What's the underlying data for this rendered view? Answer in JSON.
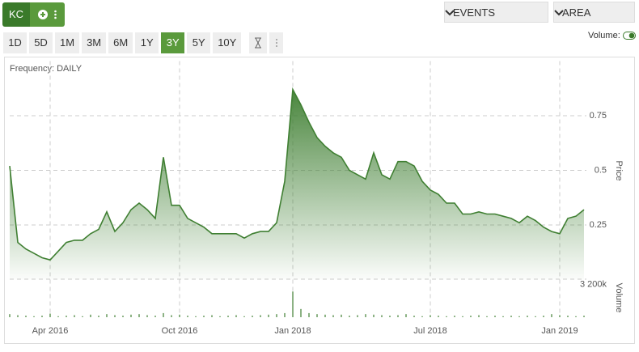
{
  "toolbar": {
    "symbol": "KC",
    "ranges": [
      "1D",
      "5D",
      "1M",
      "3M",
      "6M",
      "1Y",
      "3Y",
      "5Y",
      "10Y"
    ],
    "active_range_index": 6,
    "events": "EVENTS",
    "chart_type": "AREA",
    "volume_toggle": "Volume:"
  },
  "chart_data": {
    "type": "area",
    "subtitle": "Frequency: DAILY",
    "categories": [
      null,
      null,
      null,
      null,
      null,
      "Apr 2016",
      null,
      null,
      null,
      null,
      null,
      null,
      null,
      null,
      null,
      null,
      null,
      null,
      null,
      null,
      null,
      "Oct 2016",
      null,
      null,
      null,
      null,
      null,
      null,
      null,
      null,
      null,
      null,
      null,
      null,
      null,
      "Jan 2018",
      null,
      null,
      null,
      null,
      null,
      null,
      null,
      null,
      null,
      null,
      null,
      null,
      null,
      null,
      null,
      null,
      "Jul 2018",
      null,
      null,
      null,
      null,
      null,
      null,
      null,
      null,
      null,
      null,
      null,
      null,
      null,
      null,
      null,
      "Jan 2019",
      null,
      null,
      null
    ],
    "series": [
      {
        "name": "Price",
        "color": "#3f7f32",
        "values": [
          0.52,
          0.17,
          0.14,
          0.12,
          0.1,
          0.09,
          0.13,
          0.17,
          0.18,
          0.18,
          0.21,
          0.23,
          0.31,
          0.22,
          0.26,
          0.32,
          0.35,
          0.32,
          0.28,
          0.56,
          0.34,
          0.34,
          0.28,
          0.26,
          0.24,
          0.21,
          0.21,
          0.21,
          0.21,
          0.19,
          0.21,
          0.22,
          0.22,
          0.26,
          0.45,
          0.87,
          0.8,
          0.72,
          0.65,
          0.61,
          0.58,
          0.56,
          0.5,
          0.48,
          0.46,
          0.58,
          0.48,
          0.46,
          0.54,
          0.54,
          0.52,
          0.45,
          0.41,
          0.39,
          0.35,
          0.35,
          0.3,
          0.3,
          0.31,
          0.3,
          0.3,
          0.29,
          0.28,
          0.26,
          0.29,
          0.27,
          0.24,
          0.22,
          0.21,
          0.28,
          0.29,
          0.32
        ]
      },
      {
        "name": "Volume",
        "color": "#3f7f32",
        "axis": "y2",
        "values": [
          300000,
          200000,
          150000,
          100000,
          150000,
          350000,
          100000,
          150000,
          200000,
          100000,
          250000,
          150000,
          300000,
          200000,
          150000,
          250000,
          300000,
          200000,
          150000,
          400000,
          200000,
          250000,
          150000,
          100000,
          150000,
          200000,
          100000,
          150000,
          200000,
          100000,
          150000,
          200000,
          250000,
          300000,
          400000,
          2500000,
          800000,
          400000,
          300000,
          250000,
          200000,
          250000,
          150000,
          200000,
          300000,
          250000,
          200000,
          150000,
          200000,
          300000,
          150000,
          100000,
          200000,
          150000,
          100000,
          150000,
          100000,
          150000,
          200000,
          100000,
          150000,
          100000,
          150000,
          100000,
          150000,
          100000,
          150000,
          300000,
          200000,
          150000,
          100000,
          150000
        ]
      }
    ],
    "ylim": [
      0,
      1
    ],
    "yticks": [
      0.25,
      0.5,
      0.75
    ],
    "y2lim": [
      0,
      3700000
    ],
    "y2ticks": [
      {
        "value": 3200000,
        "label": "3 200k"
      }
    ],
    "grid": true
  }
}
